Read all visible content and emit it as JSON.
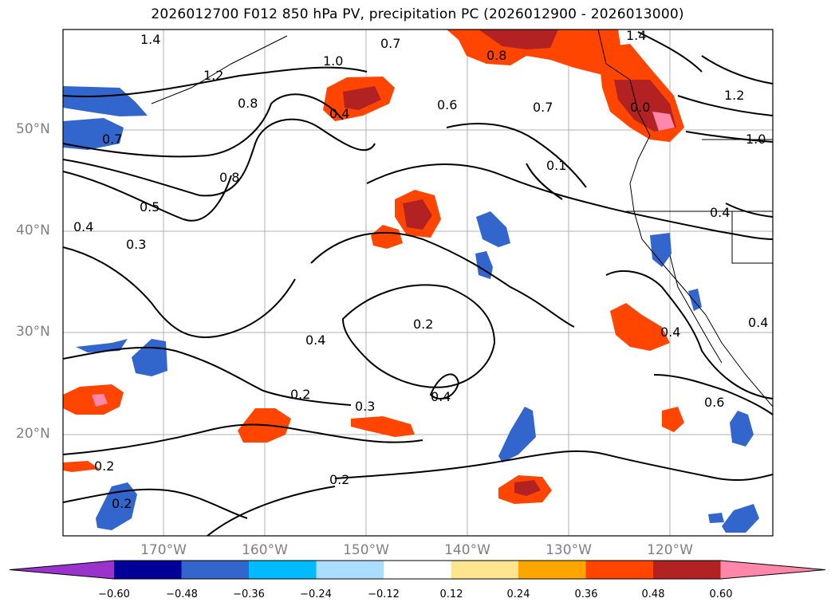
{
  "title": "2026012700 F012 850 hPa PV, precipitation PC (2026012900 - 2026013000)",
  "lat_labels": [
    "50°N",
    "40°N",
    "30°N",
    "20°N"
  ],
  "lon_labels": [
    "170°W",
    "160°W",
    "150°W",
    "140°W",
    "130°W",
    "120°W"
  ],
  "colorbar": {
    "colors": [
      "#9933cc",
      "#000099",
      "#3366cc",
      "#00bbff",
      "#aaddff",
      "#ffffff",
      "#ffe58f",
      "#ffa500",
      "#ff4500",
      "#b22222",
      "#ff88aa"
    ],
    "tick_labels": [
      "−0.60",
      "−0.48",
      "−0.36",
      "−0.24",
      "−0.12",
      "0.12",
      "0.24",
      "0.36",
      "0.48",
      "0.60"
    ]
  },
  "contour_labels": [
    "1.4",
    "1.2",
    "0.8",
    "0.7",
    "0.5",
    "0.3",
    "0.6",
    "0.4",
    "0.2",
    "0.3",
    "0.4",
    "0.2",
    "0.2",
    "0.2",
    "0.4",
    "0.7",
    "0.8",
    "1.4",
    "1.2",
    "1.0",
    "0.4",
    "0.4",
    "0.6",
    "0.2",
    "0.8",
    "0.7",
    "0.4",
    "0.0",
    "1.0",
    "0.1",
    "0.4"
  ]
}
